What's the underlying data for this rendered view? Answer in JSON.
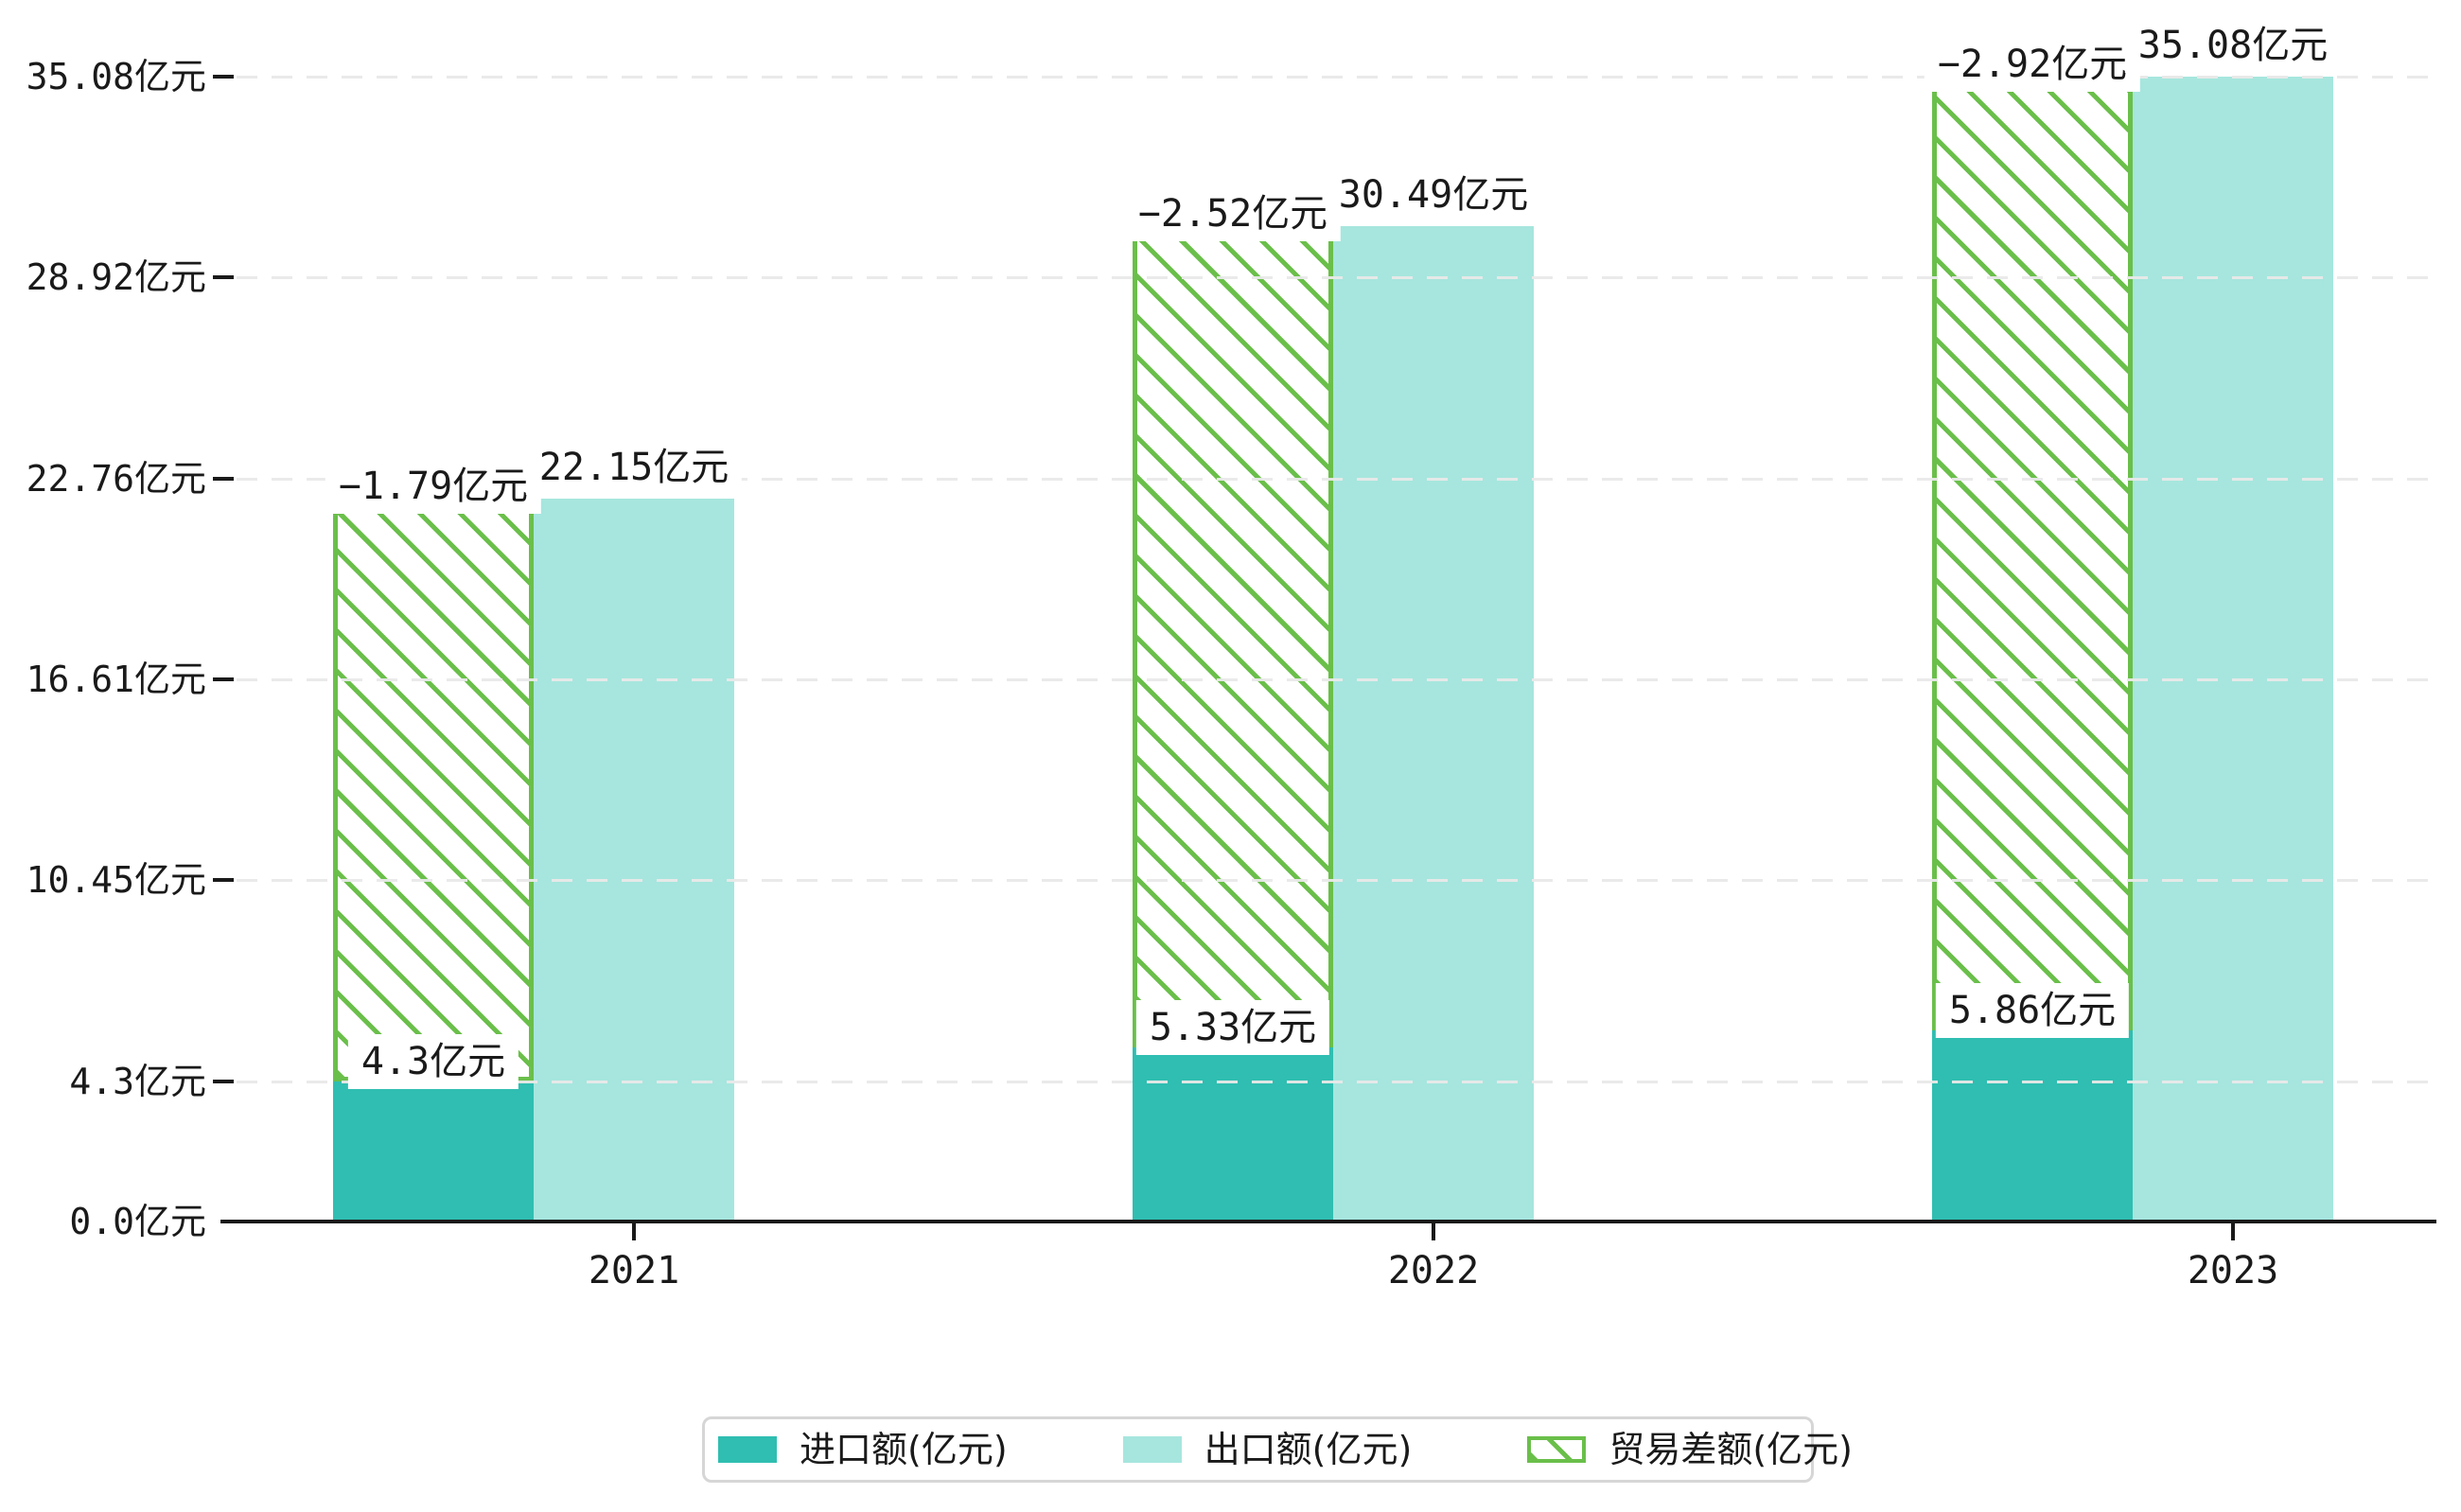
{
  "chart_data": {
    "type": "bar",
    "title": "",
    "categories": [
      "2021",
      "2022",
      "2023"
    ],
    "series": [
      {
        "name": "进口额(亿元)",
        "values": [
          4.3,
          5.33,
          5.86
        ],
        "labels": [
          "4.3亿元",
          "5.33亿元",
          "5.86亿元"
        ],
        "color": "#2fbeb1",
        "style": "solid"
      },
      {
        "name": "出口额(亿元)",
        "values": [
          22.15,
          30.49,
          35.08
        ],
        "labels": [
          "22.15亿元",
          "30.49亿元",
          "35.08亿元"
        ],
        "color": "#a6e6de",
        "style": "solid"
      },
      {
        "name": "贸易差额(亿元)",
        "values": [
          -1.79,
          -2.52,
          -2.92
        ],
        "labels": [
          "−1.79亿元",
          "−2.52亿元",
          "−2.92亿元"
        ],
        "color": "#6abf4a",
        "style": "hatched",
        "bar_geometry": "floating bar drawn over the import bar, spanning from import value up to export value"
      }
    ],
    "yticks": [
      {
        "value": 0.0,
        "label": "0.0亿元"
      },
      {
        "value": 4.3,
        "label": "4.3亿元"
      },
      {
        "value": 10.45,
        "label": "10.45亿元"
      },
      {
        "value": 16.61,
        "label": "16.61亿元"
      },
      {
        "value": 22.76,
        "label": "22.76亿元"
      },
      {
        "value": 28.92,
        "label": "28.92亿元"
      },
      {
        "value": 35.08,
        "label": "35.08亿元"
      }
    ],
    "xlabel": "",
    "ylabel": "",
    "ylim": [
      0,
      35.08
    ],
    "grid": "horizontal dashed gridlines at each y tick",
    "legend_position": "bottom center"
  },
  "legend": {
    "items": [
      {
        "label": "进口额(亿元)",
        "swatch": "solid-teal"
      },
      {
        "label": "出口额(亿元)",
        "swatch": "solid-light-teal"
      },
      {
        "label": "贸易差额(亿元)",
        "swatch": "green-hatched"
      }
    ]
  },
  "colors": {
    "import": "#2fbeb1",
    "export": "#a6e6de",
    "trade_diff": "#6abf4a",
    "axis": "#1a1a1a",
    "gridline": "#e9e9e9",
    "legend_border": "#d6d6d6"
  }
}
